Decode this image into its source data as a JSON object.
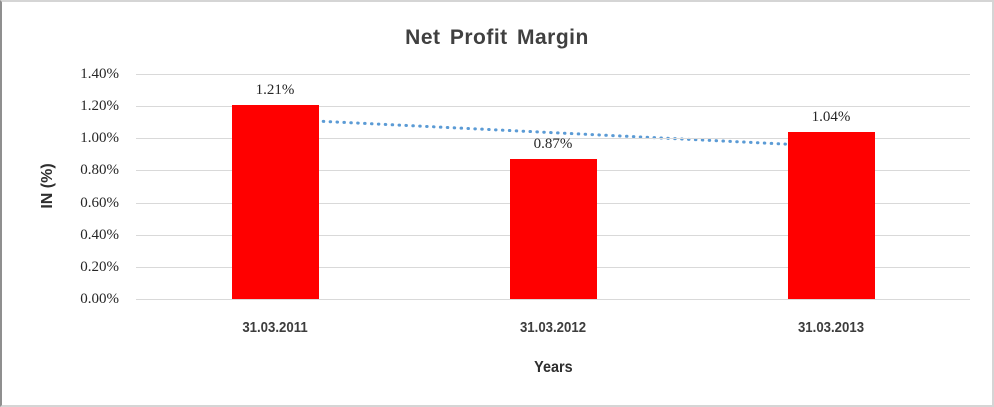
{
  "window": {
    "background": "#ffffff",
    "frame_border_color": "#d5d5d5",
    "frame_left_border_color": "#8f8f8f"
  },
  "chart_data": {
    "type": "bar",
    "title": "Net Profit Margin",
    "categories": [
      "31.03.2011",
      "31.03.2012",
      "31.03.2013"
    ],
    "values": [
      1.21,
      0.87,
      1.04
    ],
    "data_labels": [
      "1.21%",
      "0.87%",
      "1.04%"
    ],
    "xlabel": "Years",
    "ylabel": "IN (%)",
    "ylim": [
      0,
      1.4
    ],
    "ytick_step": 0.2,
    "yticks": [
      "1.40%",
      "1.20%",
      "1.00%",
      "0.80%",
      "0.60%",
      "0.40%",
      "0.20%",
      "0.00%"
    ],
    "grid": true,
    "legend": "none",
    "bar_color": "#ff0000",
    "gridline_color": "#d9d9d9",
    "label_color": "#262626",
    "title_color": "#404040",
    "trendline": {
      "type": "linear",
      "style": "dotted",
      "color": "#5b9bd5",
      "start_value": 1.12,
      "end_value": 0.95
    }
  }
}
